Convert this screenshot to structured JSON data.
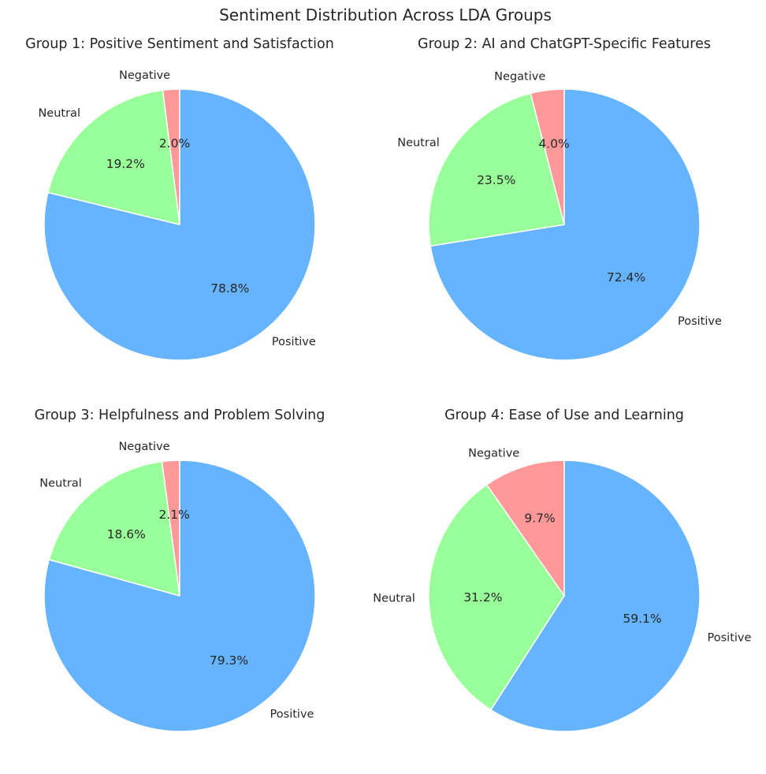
{
  "chart_data": {
    "title": "Sentiment Distribution Across LDA Groups",
    "type": "pie",
    "categories": [
      "Negative",
      "Neutral",
      "Positive"
    ],
    "colors": {
      "Negative": "#ff9999",
      "Neutral": "#99ff99",
      "Positive": "#66b3ff"
    },
    "charts": [
      {
        "type": "pie",
        "title": "Group 1: Positive Sentiment and Satisfaction",
        "slices": [
          {
            "label": "Negative",
            "value": 2.0,
            "pct_label": "2.0%"
          },
          {
            "label": "Neutral",
            "value": 19.2,
            "pct_label": "19.2%"
          },
          {
            "label": "Positive",
            "value": 78.8,
            "pct_label": "78.8%"
          }
        ]
      },
      {
        "type": "pie",
        "title": "Group 2: AI and ChatGPT-Specific Features",
        "slices": [
          {
            "label": "Negative",
            "value": 4.0,
            "pct_label": "4.0%"
          },
          {
            "label": "Neutral",
            "value": 23.5,
            "pct_label": "23.5%"
          },
          {
            "label": "Positive",
            "value": 72.4,
            "pct_label": "72.4%"
          }
        ]
      },
      {
        "type": "pie",
        "title": "Group 3: Helpfulness and Problem Solving",
        "slices": [
          {
            "label": "Negative",
            "value": 2.1,
            "pct_label": "2.1%"
          },
          {
            "label": "Neutral",
            "value": 18.6,
            "pct_label": "18.6%"
          },
          {
            "label": "Positive",
            "value": 79.3,
            "pct_label": "79.3%"
          }
        ]
      },
      {
        "type": "pie",
        "title": "Group 4: Ease of Use and Learning",
        "slices": [
          {
            "label": "Negative",
            "value": 9.7,
            "pct_label": "9.7%"
          },
          {
            "label": "Neutral",
            "value": 31.2,
            "pct_label": "31.2%"
          },
          {
            "label": "Positive",
            "value": 59.1,
            "pct_label": "59.1%"
          }
        ]
      }
    ]
  }
}
